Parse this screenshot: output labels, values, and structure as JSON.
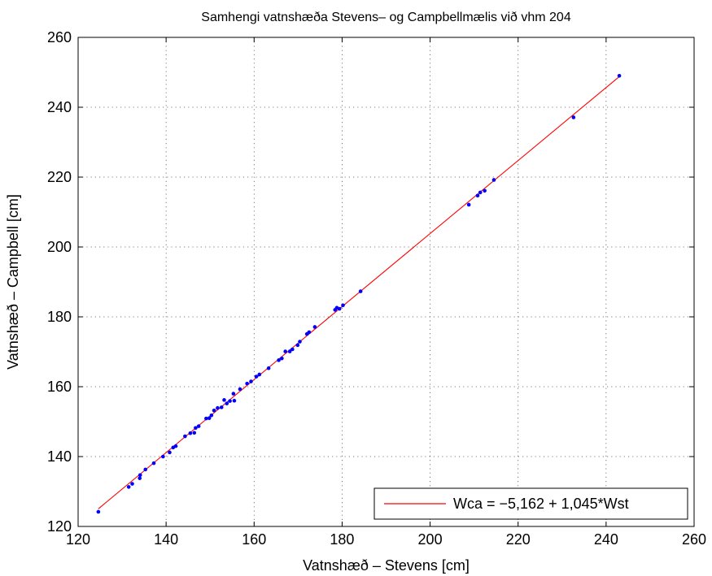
{
  "chart_data": {
    "type": "scatter",
    "title": "Samhengi vatnshæða Stevens– og Campbellmælis við vhm 204",
    "xlabel": "Vatnshæð – Stevens [cm]",
    "ylabel": "Vatnshæð – Campbell [cm]",
    "xlim": [
      120,
      260
    ],
    "ylim": [
      120,
      260
    ],
    "xticks": [
      120,
      140,
      160,
      180,
      200,
      220,
      240,
      260
    ],
    "yticks": [
      120,
      140,
      160,
      180,
      200,
      220,
      240,
      260
    ],
    "grid": true,
    "legend_position": "bottom-right",
    "series": [
      {
        "kind": "points",
        "color": "#0000ff",
        "x": [
          124.6,
          131.5,
          132.3,
          134.0,
          134.1,
          135.3,
          137.2,
          139.3,
          140.8,
          141.6,
          142.2,
          144.3,
          145.5,
          146.4,
          146.7,
          147.4,
          149.1,
          149.8,
          150.3,
          150.9,
          151.7,
          152.6,
          153.2,
          153.8,
          154.5,
          155.3,
          155.5,
          156.8,
          158.4,
          159.3,
          160.5,
          161.2,
          163.3,
          165.6,
          166.3,
          167.1,
          168.1,
          168.7,
          169.9,
          170.4,
          172.0,
          172.5,
          173.8,
          178.4,
          178.8,
          179.4,
          180.2,
          184.2,
          208.8,
          210.8,
          211.4,
          212.4,
          214.5,
          232.6,
          243.0
        ],
        "y": [
          124.2,
          131.3,
          132.2,
          133.8,
          134.7,
          136.3,
          138.1,
          140.0,
          141.2,
          142.6,
          143.0,
          145.8,
          146.7,
          146.8,
          148.2,
          148.7,
          150.9,
          151.0,
          151.8,
          153.2,
          153.9,
          154.1,
          156.2,
          155.2,
          155.9,
          158.0,
          156.0,
          159.3,
          160.9,
          161.5,
          162.9,
          163.5,
          165.3,
          167.6,
          168.1,
          170.1,
          170.1,
          170.7,
          171.9,
          172.9,
          175.1,
          175.6,
          177.1,
          182.0,
          182.6,
          182.3,
          183.3,
          187.3,
          212.1,
          214.7,
          215.6,
          216.1,
          219.2,
          237.1,
          249.0
        ]
      },
      {
        "kind": "fit_line",
        "name": "Wca = −5,162 + 1,045*Wst",
        "color": "#ff0000",
        "intercept": -5.162,
        "slope": 1.045,
        "x_range": [
          124.6,
          243.0
        ]
      }
    ]
  }
}
